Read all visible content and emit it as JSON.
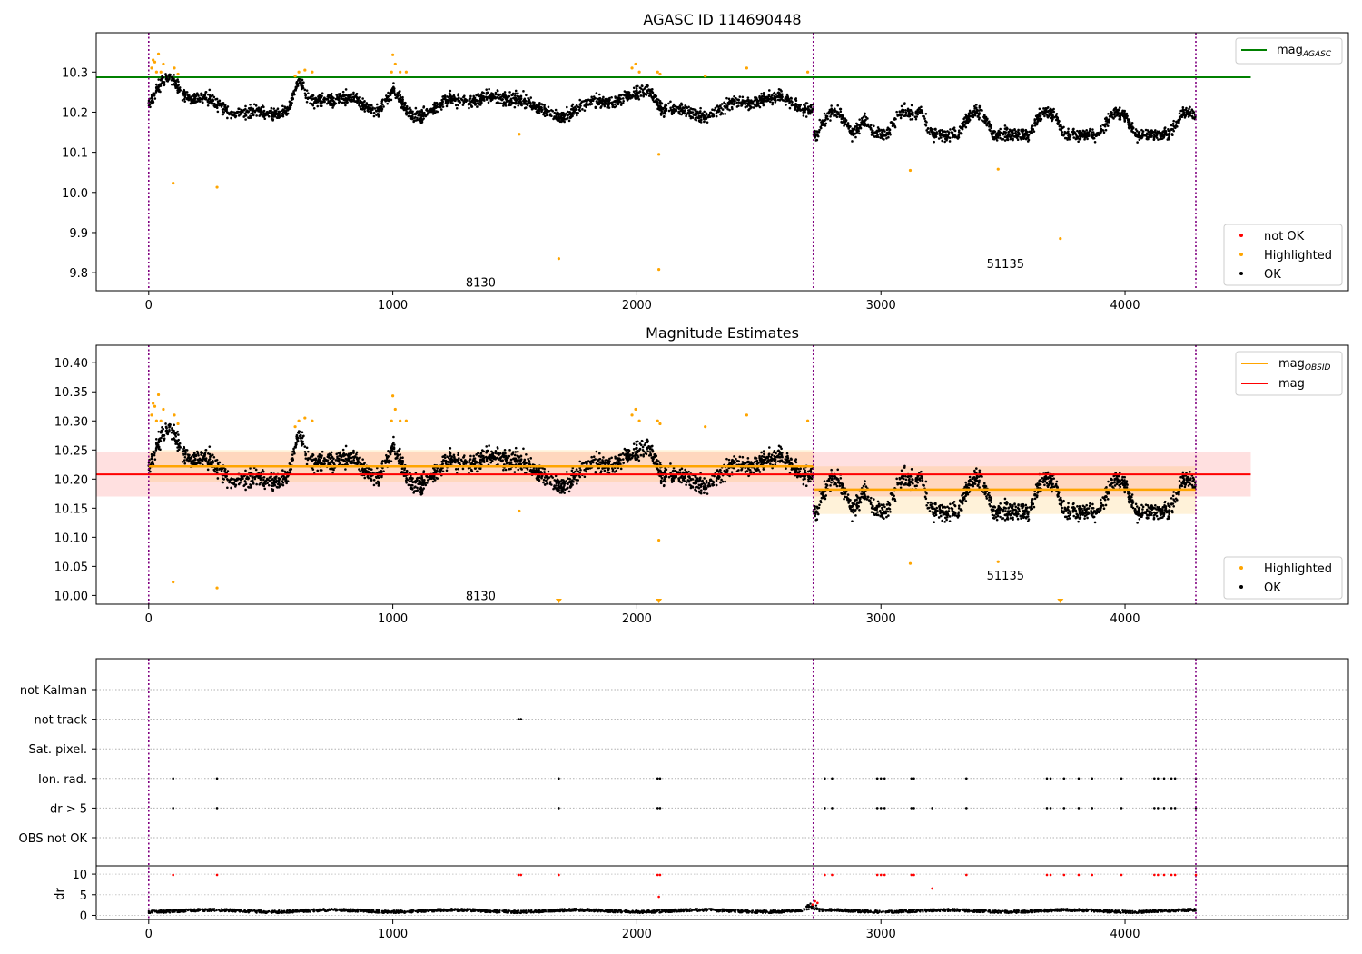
{
  "chart_data": [
    {
      "type": "scatter",
      "title": "AGASC ID 114690448",
      "xlim": [
        -215,
        4915
      ],
      "ylim": [
        9.755,
        10.398
      ],
      "xticks": [
        0,
        1000,
        2000,
        3000,
        4000
      ],
      "yticks": [
        9.8,
        9.9,
        10.0,
        10.1,
        10.2,
        10.3
      ],
      "ytick_labels": [
        "9.8",
        "9.9",
        "10.0",
        "10.1",
        "10.2",
        "10.3"
      ],
      "vlines": [
        0,
        2723,
        4290
      ],
      "obsid_labels": [
        {
          "text": "8130",
          "x": 1360,
          "y": 9.777
        },
        {
          "text": "51135",
          "x": 3510,
          "y": 9.823
        }
      ],
      "mag_agasc": {
        "value": 10.287,
        "x_range": [
          -215,
          4515
        ]
      },
      "legend_top": [
        {
          "label": "mag",
          "sub": "AGASC",
          "color": "#008000"
        }
      ],
      "legend_bottom": [
        {
          "label": "not OK",
          "color": "#ff0000"
        },
        {
          "label": "Highlighted",
          "color": "#ffa500"
        },
        {
          "label": "OK",
          "color": "#000000"
        }
      ],
      "highlighted_points": [
        [
          100,
          10.023
        ],
        [
          280,
          10.013
        ],
        [
          1518,
          10.145
        ],
        [
          1680,
          9.835
        ],
        [
          2090,
          10.095
        ],
        [
          2090,
          9.808
        ],
        [
          3735,
          9.885
        ],
        [
          3480,
          10.058
        ],
        [
          3120,
          10.055
        ],
        [
          12,
          10.31
        ],
        [
          18,
          10.33
        ],
        [
          25,
          10.325
        ],
        [
          32,
          10.3
        ],
        [
          40,
          10.345
        ],
        [
          50,
          10.3
        ],
        [
          60,
          10.32
        ],
        [
          105,
          10.31
        ],
        [
          120,
          10.295
        ],
        [
          600,
          10.29
        ],
        [
          615,
          10.3
        ],
        [
          640,
          10.305
        ],
        [
          670,
          10.3
        ],
        [
          995,
          10.3
        ],
        [
          1000,
          10.343
        ],
        [
          1010,
          10.32
        ],
        [
          1030,
          10.3
        ],
        [
          1055,
          10.3
        ],
        [
          1980,
          10.31
        ],
        [
          1995,
          10.32
        ],
        [
          2010,
          10.3
        ],
        [
          2085,
          10.3
        ],
        [
          2095,
          10.295
        ],
        [
          2280,
          10.29
        ],
        [
          2450,
          10.31
        ],
        [
          2700,
          10.3
        ]
      ],
      "segments": [
        {
          "x0": 0,
          "x1": 2723,
          "mean": 10.22,
          "osc": 0.025
        },
        {
          "x0": 2723,
          "x1": 4290,
          "mean": 10.16,
          "osc": 0.05
        }
      ]
    },
    {
      "type": "scatter",
      "title": "Magnitude Estimates",
      "xlim": [
        -215,
        4915
      ],
      "ylim": [
        9.985,
        10.43
      ],
      "xticks": [
        0,
        1000,
        2000,
        3000,
        4000
      ],
      "yticks": [
        10.0,
        10.05,
        10.1,
        10.15,
        10.2,
        10.25,
        10.3,
        10.35,
        10.4
      ],
      "ytick_labels": [
        "10.00",
        "10.05",
        "10.10",
        "10.15",
        "10.20",
        "10.25",
        "10.30",
        "10.35",
        "10.40"
      ],
      "vlines": [
        0,
        2723,
        4290
      ],
      "obsid_labels": [
        {
          "text": "8130",
          "x": 1360,
          "y": 10.0
        },
        {
          "text": "51135",
          "x": 3510,
          "y": 10.035
        }
      ],
      "mag": {
        "value": 10.208,
        "band": [
          10.17,
          10.246
        ],
        "x_range": [
          -215,
          4515
        ]
      },
      "mag_obsid": [
        {
          "x0": 0,
          "x1": 2723,
          "value": 10.222,
          "band": [
            10.195,
            10.25
          ]
        },
        {
          "x0": 2723,
          "x1": 4290,
          "value": 10.182,
          "band": [
            10.14,
            10.222
          ]
        }
      ],
      "legend_top": [
        {
          "label": "mag",
          "sub": "OBSID",
          "color": "#ffa500"
        },
        {
          "label": "mag",
          "sub": "",
          "color": "#ff0000"
        }
      ],
      "legend_bottom": [
        {
          "label": "Highlighted",
          "color": "#ffa500"
        },
        {
          "label": "OK",
          "color": "#000000"
        }
      ],
      "triangles": [
        [
          1680,
          9.99
        ],
        [
          2090,
          9.99
        ],
        [
          3735,
          9.99
        ]
      ]
    },
    {
      "type": "scatter",
      "title": "",
      "xlim": [
        -215,
        4915
      ],
      "xticks": [
        0,
        1000,
        2000,
        3000,
        4000
      ],
      "vlines": [
        0,
        2723,
        4290
      ],
      "flag_categories": [
        "not Kalman",
        "not track",
        "Sat. pixel.",
        "Ion. rad.",
        "dr > 5",
        "OBS not OK"
      ],
      "flag_points": {
        "not track": [
          1515,
          1525
        ],
        "Ion. rad.": [
          100,
          280,
          1680,
          2085,
          2095,
          2770,
          2800,
          2985,
          3000,
          3015,
          3125,
          3135,
          3350,
          3680,
          3695,
          3750,
          3810,
          3865,
          3985,
          4120,
          4135,
          4160,
          4190,
          4205,
          4290
        ],
        "dr > 5": [
          100,
          280,
          1680,
          2085,
          2095,
          2770,
          2800,
          2985,
          3000,
          3015,
          3125,
          3135,
          3210,
          3350,
          3680,
          3695,
          3750,
          3810,
          3865,
          3985,
          4120,
          4135,
          4160,
          4190,
          4205,
          4290
        ]
      },
      "dr_ylabel": "dr",
      "dr_ylim": [
        -1,
        12
      ],
      "dr_yticks": [
        0,
        5,
        10
      ],
      "dr_ytick_labels": [
        "0",
        "5",
        "10"
      ],
      "dr_notok_points": [
        [
          100,
          9.8
        ],
        [
          280,
          9.8
        ],
        [
          1515,
          9.8
        ],
        [
          1525,
          9.8
        ],
        [
          1680,
          9.8
        ],
        [
          2085,
          9.8
        ],
        [
          2095,
          9.8
        ],
        [
          2090,
          4.5
        ],
        [
          2720,
          2.6
        ],
        [
          2730,
          3.4
        ],
        [
          2740,
          3.0
        ],
        [
          2770,
          9.8
        ],
        [
          2800,
          9.8
        ],
        [
          2985,
          9.8
        ],
        [
          3000,
          9.8
        ],
        [
          3015,
          9.8
        ],
        [
          3125,
          9.8
        ],
        [
          3135,
          9.8
        ],
        [
          3210,
          6.5
        ],
        [
          3350,
          9.8
        ],
        [
          3680,
          9.8
        ],
        [
          3695,
          9.8
        ],
        [
          3750,
          9.8
        ],
        [
          3810,
          9.8
        ],
        [
          3865,
          9.8
        ],
        [
          3985,
          9.8
        ],
        [
          4120,
          9.8
        ],
        [
          4135,
          9.8
        ],
        [
          4160,
          9.8
        ],
        [
          4190,
          9.8
        ],
        [
          4205,
          9.8
        ],
        [
          4290,
          9.8
        ]
      ]
    }
  ]
}
